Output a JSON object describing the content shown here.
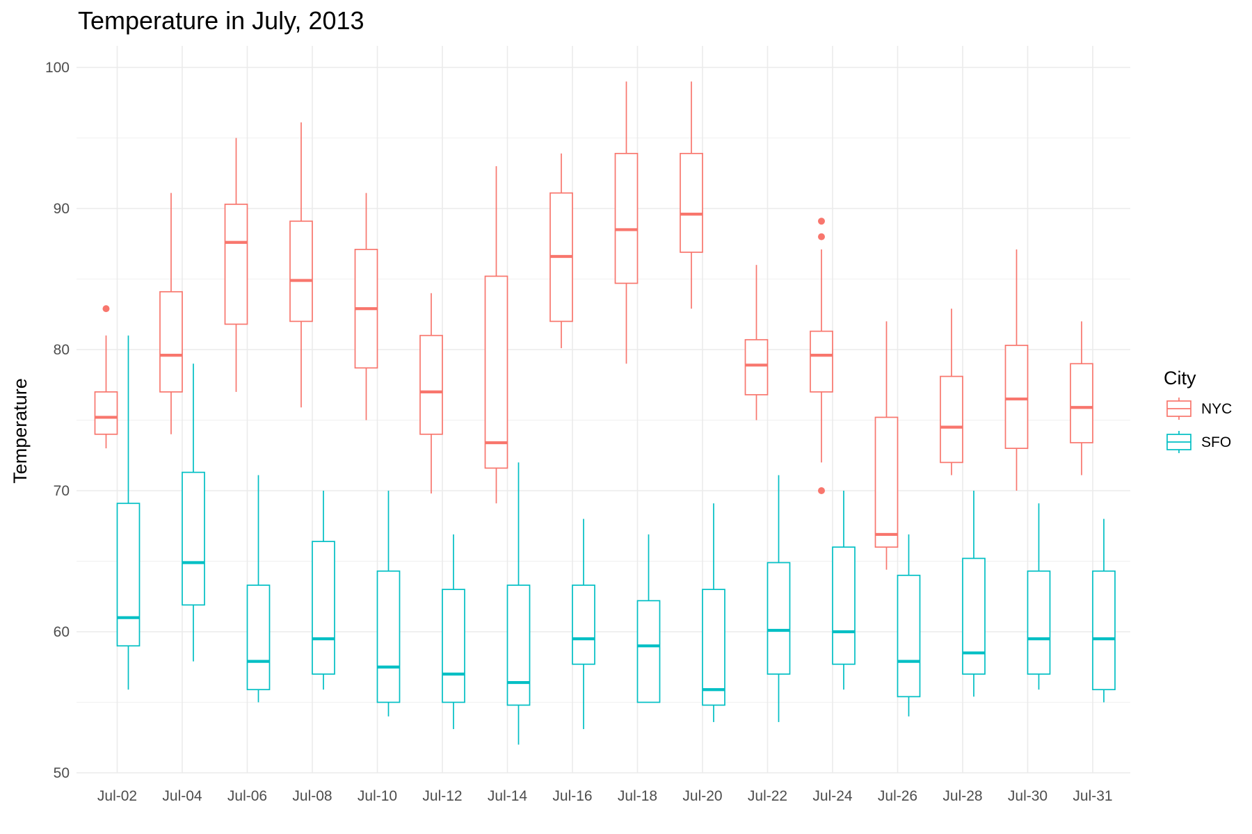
{
  "chart_data": {
    "type": "boxplot",
    "title": "Temperature in July, 2013",
    "xlabel": "",
    "ylabel": "Temperature",
    "ylim": [
      50,
      100
    ],
    "y_ticks": [
      50,
      60,
      70,
      80,
      90,
      100
    ],
    "grid": true,
    "legend_title": "City",
    "legend_position": "right",
    "categories": [
      "Jul-02",
      "Jul-04",
      "Jul-06",
      "Jul-08",
      "Jul-10",
      "Jul-12",
      "Jul-14",
      "Jul-16",
      "Jul-18",
      "Jul-20",
      "Jul-22",
      "Jul-24",
      "Jul-26",
      "Jul-28",
      "Jul-30",
      "Jul-31"
    ],
    "series": [
      {
        "name": "NYC",
        "color": "#F8766D",
        "boxes": [
          {
            "min": 73,
            "q1": 74,
            "median": 75.2,
            "q3": 77,
            "max": 81,
            "outliers": [
              82.9
            ]
          },
          {
            "min": 74,
            "q1": 77,
            "median": 79.6,
            "q3": 84.1,
            "max": 91.1,
            "outliers": []
          },
          {
            "min": 77,
            "q1": 81.8,
            "median": 87.6,
            "q3": 90.3,
            "max": 95,
            "outliers": []
          },
          {
            "min": 75.9,
            "q1": 82,
            "median": 84.9,
            "q3": 89.1,
            "max": 96.1,
            "outliers": []
          },
          {
            "min": 75,
            "q1": 78.7,
            "median": 82.9,
            "q3": 87.1,
            "max": 91.1,
            "outliers": []
          },
          {
            "min": 69.8,
            "q1": 74,
            "median": 77,
            "q3": 81,
            "max": 84,
            "outliers": []
          },
          {
            "min": 69.1,
            "q1": 71.6,
            "median": 73.4,
            "q3": 85.2,
            "max": 93,
            "outliers": []
          },
          {
            "min": 80.1,
            "q1": 82,
            "median": 86.6,
            "q3": 91.1,
            "max": 93.9,
            "outliers": []
          },
          {
            "min": 79,
            "q1": 84.7,
            "median": 88.5,
            "q3": 93.9,
            "max": 99,
            "outliers": []
          },
          {
            "min": 82.9,
            "q1": 86.9,
            "median": 89.6,
            "q3": 93.9,
            "max": 99,
            "outliers": []
          },
          {
            "min": 75,
            "q1": 76.8,
            "median": 78.9,
            "q3": 80.7,
            "max": 86,
            "outliers": []
          },
          {
            "min": 72,
            "q1": 77,
            "median": 79.6,
            "q3": 81.3,
            "max": 87.1,
            "outliers": [
              89.1,
              88,
              70
            ]
          },
          {
            "min": 64.4,
            "q1": 66,
            "median": 66.9,
            "q3": 75.2,
            "max": 82,
            "outliers": []
          },
          {
            "min": 71.1,
            "q1": 72,
            "median": 74.5,
            "q3": 78.1,
            "max": 82.9,
            "outliers": []
          },
          {
            "min": 70,
            "q1": 73,
            "median": 76.5,
            "q3": 80.3,
            "max": 87.1,
            "outliers": []
          },
          {
            "min": 71.1,
            "q1": 73.4,
            "median": 75.9,
            "q3": 79,
            "max": 82,
            "outliers": []
          }
        ]
      },
      {
        "name": "SFO",
        "color": "#00BFC4",
        "boxes": [
          {
            "min": 55.9,
            "q1": 59,
            "median": 61,
            "q3": 69.1,
            "max": 81,
            "outliers": []
          },
          {
            "min": 57.9,
            "q1": 61.9,
            "median": 64.9,
            "q3": 71.3,
            "max": 79,
            "outliers": []
          },
          {
            "min": 55,
            "q1": 55.9,
            "median": 57.9,
            "q3": 63.3,
            "max": 71.1,
            "outliers": []
          },
          {
            "min": 55.9,
            "q1": 57,
            "median": 59.5,
            "q3": 66.4,
            "max": 70,
            "outliers": []
          },
          {
            "min": 54,
            "q1": 55,
            "median": 57.5,
            "q3": 64.3,
            "max": 70,
            "outliers": []
          },
          {
            "min": 53.1,
            "q1": 55,
            "median": 57,
            "q3": 63,
            "max": 66.9,
            "outliers": []
          },
          {
            "min": 52,
            "q1": 54.8,
            "median": 56.4,
            "q3": 63.3,
            "max": 72,
            "outliers": []
          },
          {
            "min": 53.1,
            "q1": 57.7,
            "median": 59.5,
            "q3": 63.3,
            "max": 68,
            "outliers": []
          },
          {
            "min": 55,
            "q1": 55,
            "median": 59,
            "q3": 62.2,
            "max": 66.9,
            "outliers": []
          },
          {
            "min": 53.6,
            "q1": 54.8,
            "median": 55.9,
            "q3": 63,
            "max": 69.1,
            "outliers": []
          },
          {
            "min": 53.6,
            "q1": 57,
            "median": 60.1,
            "q3": 64.9,
            "max": 71.1,
            "outliers": []
          },
          {
            "min": 55.9,
            "q1": 57.7,
            "median": 60,
            "q3": 66,
            "max": 70,
            "outliers": []
          },
          {
            "min": 54,
            "q1": 55.4,
            "median": 57.9,
            "q3": 64,
            "max": 66.9,
            "outliers": []
          },
          {
            "min": 55.4,
            "q1": 57,
            "median": 58.5,
            "q3": 65.2,
            "max": 70,
            "outliers": []
          },
          {
            "min": 55.9,
            "q1": 57,
            "median": 59.5,
            "q3": 64.3,
            "max": 69.1,
            "outliers": []
          },
          {
            "min": 55,
            "q1": 55.9,
            "median": 59.5,
            "q3": 64.3,
            "max": 68,
            "outliers": []
          }
        ]
      }
    ]
  }
}
